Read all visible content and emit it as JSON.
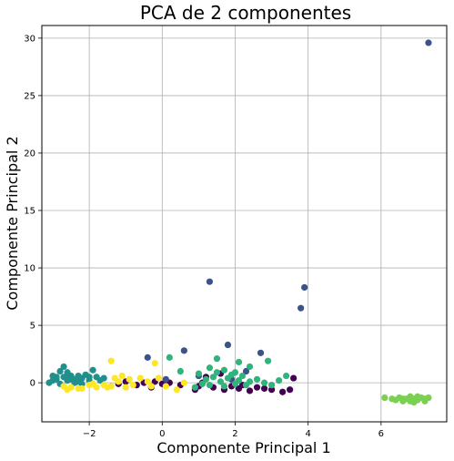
{
  "chart_data": {
    "type": "scatter",
    "title": "PCA de 2 componentes",
    "xlabel": "Componente Principal 1",
    "ylabel": "Componente Principal  2",
    "xlim": [
      -3.3,
      7.8
    ],
    "ylim": [
      -3.4,
      31.1
    ],
    "x_ticks": [
      -2,
      0,
      2,
      4,
      6
    ],
    "x_tick_labels": [
      "−2",
      "0",
      "2",
      "4",
      "6"
    ],
    "y_ticks": [
      0,
      5,
      10,
      15,
      20,
      25,
      30
    ],
    "y_tick_labels": [
      "0",
      "5",
      "10",
      "15",
      "20",
      "25",
      "30"
    ],
    "grid": true,
    "legend": "none",
    "series": [
      {
        "color": "#440154",
        "points": [
          [
            -1.2,
            -0.1
          ],
          [
            -1.0,
            0.1
          ],
          [
            -0.7,
            -0.2
          ],
          [
            -0.5,
            0.0
          ],
          [
            -0.2,
            0.1
          ],
          [
            0.1,
            -0.2
          ],
          [
            0.2,
            0.0
          ],
          [
            0.5,
            -0.2
          ],
          [
            0.9,
            -0.6
          ],
          [
            1.1,
            0.0
          ],
          [
            1.4,
            -0.4
          ],
          [
            1.7,
            -0.6
          ],
          [
            1.9,
            -0.3
          ],
          [
            2.1,
            -0.5
          ],
          [
            2.4,
            -0.7
          ],
          [
            2.6,
            -0.4
          ],
          [
            2.8,
            -0.5
          ],
          [
            3.0,
            -0.6
          ],
          [
            3.3,
            -0.8
          ],
          [
            3.5,
            -0.6
          ],
          [
            3.6,
            0.4
          ],
          [
            1.2,
            0.5
          ],
          [
            1.6,
            0.8
          ],
          [
            2.2,
            -0.2
          ],
          [
            1.0,
            -0.3
          ],
          [
            0.0,
            -0.1
          ],
          [
            -0.3,
            -0.4
          ]
        ]
      },
      {
        "color": "#3b528b",
        "points": [
          [
            7.3,
            29.6
          ],
          [
            1.3,
            8.8
          ],
          [
            3.9,
            8.3
          ],
          [
            3.8,
            6.5
          ],
          [
            0.6,
            2.8
          ],
          [
            -0.4,
            2.2
          ],
          [
            1.8,
            3.3
          ],
          [
            2.7,
            2.6
          ],
          [
            1.9,
            0.3
          ],
          [
            0.1,
            0.3
          ],
          [
            2.3,
            1.0
          ],
          [
            1.0,
            0.6
          ]
        ]
      },
      {
        "color": "#21908d",
        "points": [
          [
            -3.0,
            0.6
          ],
          [
            -2.9,
            0.3
          ],
          [
            -3.1,
            0.0
          ],
          [
            -2.8,
            1.0
          ],
          [
            -2.7,
            1.4
          ],
          [
            -2.6,
            0.9
          ],
          [
            -2.5,
            0.6
          ],
          [
            -2.4,
            0.3
          ],
          [
            -2.3,
            0.1
          ],
          [
            -2.2,
            0.4
          ],
          [
            -2.1,
            0.7
          ],
          [
            -2.0,
            0.2
          ],
          [
            -1.9,
            1.1
          ],
          [
            -1.8,
            0.5
          ],
          [
            -2.6,
            0.2
          ],
          [
            -2.8,
            -0.1
          ],
          [
            -2.4,
            0.0
          ],
          [
            -2.9,
            0.5
          ],
          [
            -2.5,
            0.3
          ],
          [
            -2.7,
            0.5
          ],
          [
            -2.3,
            0.6
          ],
          [
            -1.6,
            0.4
          ],
          [
            -2.2,
            -0.1
          ],
          [
            -3.0,
            0.2
          ],
          [
            -2.6,
            0.6
          ],
          [
            -2.0,
            0.5
          ],
          [
            -1.7,
            0.2
          ]
        ]
      },
      {
        "color": "#2fb47c",
        "points": [
          [
            1.0,
            0.8
          ],
          [
            1.2,
            0.3
          ],
          [
            1.3,
            -0.2
          ],
          [
            1.4,
            0.5
          ],
          [
            1.5,
            0.9
          ],
          [
            1.6,
            0.1
          ],
          [
            1.7,
            -0.3
          ],
          [
            1.8,
            0.4
          ],
          [
            1.9,
            0.7
          ],
          [
            2.0,
            -0.1
          ],
          [
            2.1,
            0.2
          ],
          [
            2.2,
            0.6
          ],
          [
            2.3,
            -0.2
          ],
          [
            2.4,
            0.1
          ],
          [
            1.5,
            2.1
          ],
          [
            2.1,
            1.8
          ],
          [
            2.4,
            1.4
          ],
          [
            2.9,
            1.9
          ],
          [
            2.6,
            0.3
          ],
          [
            2.8,
            0.0
          ],
          [
            3.0,
            -0.2
          ],
          [
            3.2,
            0.2
          ],
          [
            3.4,
            0.6
          ],
          [
            1.1,
            -0.1
          ],
          [
            1.3,
            1.3
          ],
          [
            0.2,
            2.2
          ],
          [
            0.5,
            1.0
          ],
          [
            0.9,
            -0.4
          ],
          [
            1.7,
            1.1
          ],
          [
            2.0,
            0.9
          ]
        ]
      },
      {
        "color": "#7ad151",
        "points": [
          [
            6.1,
            -1.3
          ],
          [
            6.3,
            -1.4
          ],
          [
            6.4,
            -1.5
          ],
          [
            6.5,
            -1.3
          ],
          [
            6.6,
            -1.6
          ],
          [
            6.7,
            -1.4
          ],
          [
            6.8,
            -1.2
          ],
          [
            6.8,
            -1.6
          ],
          [
            6.9,
            -1.4
          ],
          [
            7.0,
            -1.5
          ],
          [
            7.0,
            -1.2
          ],
          [
            7.1,
            -1.3
          ],
          [
            7.2,
            -1.6
          ],
          [
            7.2,
            -1.4
          ],
          [
            7.3,
            -1.3
          ],
          [
            6.6,
            -1.4
          ],
          [
            6.9,
            -1.7
          ]
        ]
      },
      {
        "color": "#fde725",
        "points": [
          [
            -2.7,
            -0.3
          ],
          [
            -2.5,
            -0.4
          ],
          [
            -2.3,
            -0.5
          ],
          [
            -2.0,
            -0.2
          ],
          [
            -1.8,
            -0.4
          ],
          [
            -1.6,
            -0.2
          ],
          [
            -1.5,
            -0.4
          ],
          [
            -1.4,
            -0.3
          ],
          [
            -1.3,
            0.4
          ],
          [
            -1.2,
            0.1
          ],
          [
            -1.1,
            0.6
          ],
          [
            -0.9,
            0.3
          ],
          [
            -0.8,
            -0.2
          ],
          [
            -0.6,
            0.4
          ],
          [
            -0.4,
            0.1
          ],
          [
            -0.3,
            -0.3
          ],
          [
            -0.2,
            1.7
          ],
          [
            -0.1,
            0.4
          ],
          [
            0.1,
            -0.3
          ],
          [
            0.4,
            -0.6
          ],
          [
            -1.4,
            1.9
          ],
          [
            -2.6,
            -0.6
          ],
          [
            -2.2,
            -0.5
          ],
          [
            -1.9,
            -0.1
          ],
          [
            -1.0,
            -0.4
          ],
          [
            0.6,
            0.0
          ]
        ]
      }
    ]
  }
}
